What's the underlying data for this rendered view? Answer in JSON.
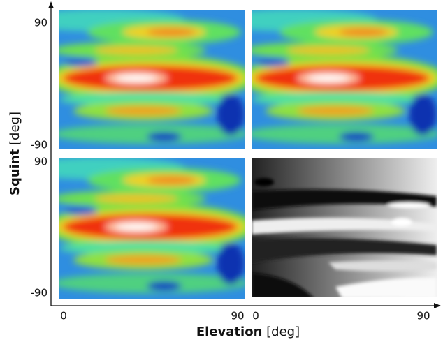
{
  "chart_data": {
    "type": "heatmap",
    "xlabel": {
      "name": "Elevation",
      "unit": "[deg]"
    },
    "ylabel": {
      "name": "Squint",
      "unit": "[deg]"
    },
    "xlim": [
      0,
      90
    ],
    "xticks": [
      0,
      90
    ],
    "ylim": [
      -90,
      90
    ],
    "yticks": [
      -90,
      90
    ]
  }
}
